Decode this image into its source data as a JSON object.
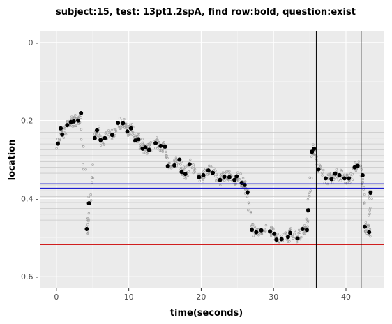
{
  "chart_data": {
    "type": "scatter",
    "title": "subject:15, test: 13pt1.2spA, find row:bold, question:exist",
    "xlabel": "time(seconds)",
    "ylabel": "location",
    "xlim": [
      -2.3,
      45.3
    ],
    "ylim": [
      0.63,
      -0.03
    ],
    "y_reversed": true,
    "x_ticks": [
      0,
      10,
      20,
      30,
      40
    ],
    "y_ticks": [
      0,
      0.2,
      0.4,
      0.6
    ],
    "x_tick_labels": [
      "0",
      "10",
      "20",
      "30",
      "40"
    ],
    "y_tick_labels": [
      "0 -",
      "0.2 -",
      "0.4 -",
      "0.6 -"
    ],
    "background_color": "#ebebeb",
    "grid": true,
    "row_lines": [
      0.23,
      0.245,
      0.26,
      0.275,
      0.29,
      0.305,
      0.32,
      0.335,
      0.35,
      0.365,
      0.38,
      0.395,
      0.41,
      0.425,
      0.44,
      0.455,
      0.47
    ],
    "row_line_color": "#c8c8c8",
    "target_lines": {
      "color": "#0000cc",
      "y": [
        0.362,
        0.373
      ]
    },
    "answer_lines": {
      "color": "#cc0000",
      "y": [
        0.518,
        0.529
      ]
    },
    "vertical_lines": {
      "color": "#000000",
      "x": [
        35.9,
        42.1
      ]
    },
    "fixations": [
      [
        0.2,
        0.259
      ],
      [
        0.6,
        0.22
      ],
      [
        0.8,
        0.236
      ],
      [
        1.5,
        0.212
      ],
      [
        2.0,
        0.204
      ],
      [
        2.4,
        0.202
      ],
      [
        3.0,
        0.2
      ],
      [
        3.4,
        0.181
      ],
      [
        4.2,
        0.478
      ],
      [
        4.5,
        0.412
      ],
      [
        5.3,
        0.245
      ],
      [
        5.6,
        0.225
      ],
      [
        6.1,
        0.25
      ],
      [
        6.7,
        0.245
      ],
      [
        7.7,
        0.237
      ],
      [
        8.5,
        0.206
      ],
      [
        9.2,
        0.207
      ],
      [
        9.8,
        0.228
      ],
      [
        10.3,
        0.22
      ],
      [
        10.9,
        0.251
      ],
      [
        11.3,
        0.248
      ],
      [
        11.9,
        0.272
      ],
      [
        12.3,
        0.269
      ],
      [
        12.8,
        0.275
      ],
      [
        13.7,
        0.258
      ],
      [
        14.4,
        0.265
      ],
      [
        15.0,
        0.267
      ],
      [
        15.4,
        0.317
      ],
      [
        16.3,
        0.315
      ],
      [
        17.0,
        0.3
      ],
      [
        17.3,
        0.332
      ],
      [
        17.8,
        0.337
      ],
      [
        18.4,
        0.312
      ],
      [
        19.7,
        0.345
      ],
      [
        20.3,
        0.34
      ],
      [
        21.0,
        0.328
      ],
      [
        21.6,
        0.334
      ],
      [
        22.6,
        0.352
      ],
      [
        23.2,
        0.344
      ],
      [
        23.9,
        0.345
      ],
      [
        24.6,
        0.352
      ],
      [
        24.9,
        0.343
      ],
      [
        25.6,
        0.36
      ],
      [
        26.0,
        0.365
      ],
      [
        26.4,
        0.384
      ],
      [
        27.0,
        0.48
      ],
      [
        27.6,
        0.486
      ],
      [
        28.3,
        0.481
      ],
      [
        29.5,
        0.484
      ],
      [
        30.1,
        0.49
      ],
      [
        30.4,
        0.505
      ],
      [
        31.1,
        0.504
      ],
      [
        32.0,
        0.498
      ],
      [
        32.3,
        0.488
      ],
      [
        33.3,
        0.502
      ],
      [
        34.0,
        0.478
      ],
      [
        34.6,
        0.48
      ],
      [
        34.8,
        0.43
      ],
      [
        35.3,
        0.28
      ],
      [
        35.6,
        0.272
      ],
      [
        36.2,
        0.325
      ],
      [
        37.2,
        0.348
      ],
      [
        38.0,
        0.35
      ],
      [
        38.5,
        0.336
      ],
      [
        39.1,
        0.34
      ],
      [
        39.8,
        0.348
      ],
      [
        40.4,
        0.348
      ],
      [
        41.2,
        0.32
      ],
      [
        41.6,
        0.316
      ],
      [
        42.3,
        0.34
      ],
      [
        42.6,
        0.472
      ],
      [
        43.2,
        0.486
      ],
      [
        43.4,
        0.385
      ]
    ]
  }
}
